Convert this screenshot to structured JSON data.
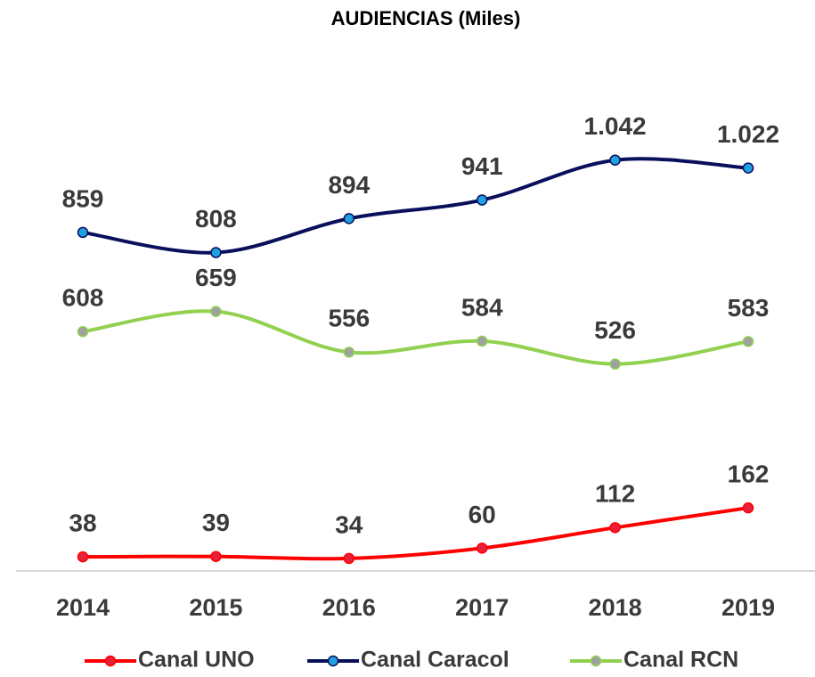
{
  "chart_data": {
    "type": "line",
    "title": "AUDIENCIAS (Miles)",
    "categories": [
      "2014",
      "2015",
      "2016",
      "2017",
      "2018",
      "2019"
    ],
    "series": [
      {
        "name": "Canal UNO",
        "color": "#ff0000",
        "marker_color": "#e8203a",
        "values": [
          38,
          39,
          34,
          60,
          112,
          162
        ]
      },
      {
        "name": "Canal Caracol",
        "color": "#0a0f5c",
        "marker_color": "#1fa0e0",
        "values": [
          859,
          808,
          894,
          941,
          1042,
          1022
        ],
        "value_labels": [
          "859",
          "808",
          "894",
          "941",
          "1.042",
          "1.022"
        ]
      },
      {
        "name": "Canal RCN",
        "color": "#92d050",
        "marker_color": "#a0a0a0",
        "values": [
          608,
          659,
          556,
          584,
          526,
          583
        ]
      }
    ],
    "ylim": [
      0,
      1100
    ],
    "legend": "bottom",
    "smooth": true
  }
}
